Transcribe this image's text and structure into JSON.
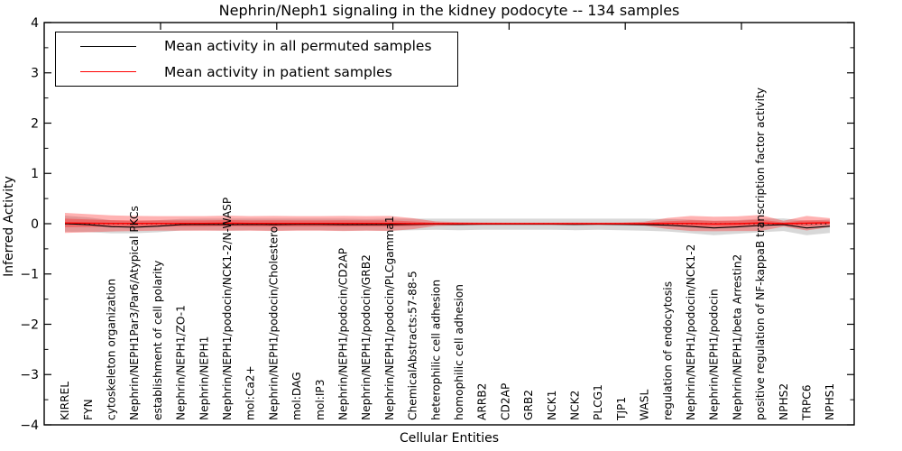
{
  "title": "Nephrin/Neph1 signaling in the kidney podocyte -- 134 samples",
  "axes": {
    "y_label": "Inferred Activity",
    "x_label": "Cellular Entities",
    "y_tick_values": [
      4,
      3,
      2,
      1,
      0,
      -1,
      -2,
      -3,
      -4
    ]
  },
  "legend": {
    "entries": [
      {
        "label": "Mean activity in all permuted samples",
        "color": "#000000"
      },
      {
        "label": "Mean activity in patient samples",
        "color": "#ff0000"
      }
    ]
  },
  "colors": {
    "permuted_line": "#000000",
    "permuted_band": "#999999",
    "patient_line": "#ff0000",
    "patient_band": "#ff0000",
    "zero_line": "#000000",
    "spine": "#000000"
  },
  "chart_data": {
    "type": "line",
    "title": "Nephrin/Neph1 signaling in the kidney podocyte -- 134 samples",
    "xlabel": "Cellular Entities",
    "ylabel": "Inferred Activity",
    "ylim": [
      -4,
      4
    ],
    "y_major_step": 1,
    "y_minor_step": 0.5,
    "grid": false,
    "legend_position": "upper left",
    "zero_reference_line": {
      "y": 0,
      "style": "dotted",
      "color": "#000000"
    },
    "categories": [
      "KIRREL",
      "FYN",
      "cytoskeleton organization",
      "Nephrin/NEPH1Par3/Par6/Atypical PKCs",
      "establishment of cell polarity",
      "Nephrin/NEPH1/ZO-1",
      "Nephrin/NEPH1",
      "Nephrin/NEPH1/podocin/NCK1-2/N-WASP",
      "mol:Ca2+",
      "Nephrin/NEPH1/podocin/Cholesterol",
      "mol:DAG",
      "mol:IP3",
      "Nephrin/NEPH1/podocin/CD2AP",
      "Nephrin/NEPH1/podocin/GRB2",
      "Nephrin/NEPH1/podocin/PLCgamma1",
      "ChemicalAbstracts:57-88-5",
      "heterophilic cell adhesion",
      "homophilic cell adhesion",
      "ARRB2",
      "CD2AP",
      "GRB2",
      "NCK1",
      "NCK2",
      "PLCG1",
      "TJP1",
      "WASL",
      "regulation of endocytosis",
      "Nephrin/NEPH1/podocin/NCK1-2",
      "Nephrin/NEPH1/podocin",
      "Nephrin/NEPH1/beta Arrestin2",
      "positive regulation of NF-kappaB transcription factor activity",
      "NPHS2",
      "TRPC6",
      "NPHS1"
    ],
    "series": [
      {
        "name": "Mean activity in all permuted samples",
        "color": "#000000",
        "values": [
          0.0,
          -0.02,
          -0.06,
          -0.07,
          -0.05,
          -0.02,
          -0.015,
          -0.02,
          -0.015,
          -0.02,
          -0.015,
          -0.015,
          -0.02,
          -0.02,
          -0.02,
          -0.015,
          -0.01,
          -0.015,
          -0.01,
          -0.01,
          -0.01,
          -0.01,
          -0.015,
          -0.01,
          -0.015,
          -0.02,
          -0.03,
          -0.055,
          -0.085,
          -0.065,
          -0.035,
          -0.02,
          -0.085,
          -0.05
        ],
        "band_halfwidth": [
          0.16,
          0.145,
          0.13,
          0.12,
          0.12,
          0.115,
          0.115,
          0.12,
          0.115,
          0.12,
          0.115,
          0.115,
          0.12,
          0.115,
          0.12,
          0.115,
          0.11,
          0.115,
          0.11,
          0.11,
          0.11,
          0.11,
          0.115,
          0.11,
          0.115,
          0.12,
          0.125,
          0.135,
          0.145,
          0.135,
          0.135,
          0.125,
          0.145,
          0.135
        ]
      },
      {
        "name": "Mean activity in patient samples",
        "color": "#ff0000",
        "values": [
          0.015,
          0.01,
          0.005,
          0.005,
          0.005,
          0.005,
          0.005,
          0.01,
          0.005,
          0.005,
          0.005,
          0.005,
          0.005,
          0.005,
          0.005,
          0.0,
          0.0,
          0.0,
          0.0,
          0.0,
          0.0,
          0.0,
          0.0,
          0.0,
          0.0,
          0.0,
          0.005,
          0.005,
          -0.005,
          0.0,
          0.015,
          0.0,
          0.01,
          0.02
        ],
        "band_outer_halfwidth": [
          0.2,
          0.18,
          0.16,
          0.15,
          0.145,
          0.145,
          0.145,
          0.15,
          0.145,
          0.15,
          0.145,
          0.145,
          0.15,
          0.145,
          0.15,
          0.11,
          0.045,
          0.03,
          0.025,
          0.022,
          0.022,
          0.022,
          0.025,
          0.022,
          0.025,
          0.04,
          0.11,
          0.15,
          0.145,
          0.145,
          0.16,
          0.06,
          0.145,
          0.09
        ],
        "band_inner_halfwidth": [
          0.085,
          0.075,
          0.065,
          0.062,
          0.06,
          0.06,
          0.06,
          0.062,
          0.06,
          0.062,
          0.06,
          0.06,
          0.062,
          0.06,
          0.062,
          0.045,
          0.02,
          0.013,
          0.011,
          0.01,
          0.01,
          0.01,
          0.011,
          0.01,
          0.011,
          0.018,
          0.045,
          0.062,
          0.06,
          0.06,
          0.065,
          0.026,
          0.06,
          0.038
        ]
      }
    ]
  }
}
